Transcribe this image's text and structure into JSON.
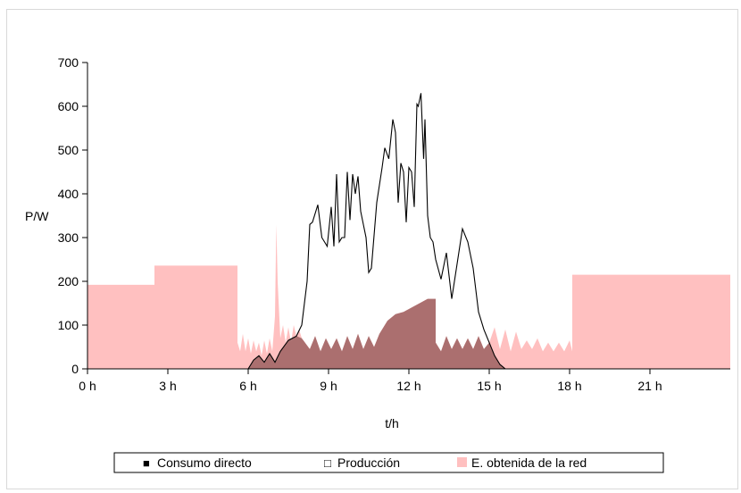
{
  "chart_data": {
    "type": "area",
    "title": "",
    "xlabel": "t/h",
    "ylabel": "P/W",
    "xlim": [
      0,
      24
    ],
    "ylim": [
      0,
      700
    ],
    "x_ticks": [
      0,
      3,
      6,
      9,
      12,
      15,
      18,
      21
    ],
    "x_tick_labels": [
      "0 h",
      "3 h",
      "6 h",
      "9 h",
      "12 h",
      "15 h",
      "18 h",
      "21 h"
    ],
    "y_ticks": [
      0,
      100,
      200,
      300,
      400,
      500,
      600,
      700
    ],
    "y_tick_labels": [
      "0",
      "100",
      "200",
      "300",
      "400",
      "500",
      "600",
      "700"
    ],
    "grid": false,
    "legend_position": "bottom",
    "legend": [
      {
        "label": "Consumo directo",
        "marker": "■"
      },
      {
        "label": "Producción",
        "marker": "□"
      },
      {
        "label": "E. obtenida de la red",
        "marker": ""
      }
    ],
    "colors": {
      "red": "#ffc0c0",
      "consumo": "#a46868",
      "produccion_line": "#000000"
    },
    "series": [
      {
        "name": "E. obtenida de la red",
        "x": [
          0,
          2.5,
          2.5,
          5.6,
          5.6,
          5.7,
          5.8,
          5.9,
          6.0,
          6.1,
          6.2,
          6.3,
          6.4,
          6.5,
          6.6,
          6.7,
          6.8,
          6.9,
          7.0,
          7.05,
          7.1,
          7.2,
          7.3,
          7.4,
          7.5,
          7.6,
          7.7,
          7.8,
          7.9,
          8.0,
          8.3,
          8.5,
          8.7,
          8.9,
          9.1,
          9.3,
          9.5,
          9.7,
          9.9,
          10.1,
          10.3,
          10.5,
          10.7,
          10.9,
          11.0,
          11.2,
          11.5,
          11.8,
          12.1,
          12.4,
          12.7,
          13.0,
          13.0,
          13.2,
          13.4,
          13.6,
          13.8,
          14.0,
          14.2,
          14.4,
          14.6,
          14.8,
          15.0,
          15.2,
          15.4,
          15.6,
          15.8,
          16.0,
          16.2,
          16.4,
          16.6,
          16.8,
          17.0,
          17.2,
          17.4,
          17.6,
          17.8,
          18.0,
          18.1,
          18.1,
          24
        ],
        "values": [
          192,
          192,
          236,
          236,
          60,
          40,
          80,
          40,
          70,
          35,
          65,
          40,
          60,
          30,
          65,
          35,
          70,
          40,
          120,
          330,
          200,
          70,
          100,
          60,
          95,
          60,
          100,
          75,
          90,
          70,
          45,
          75,
          40,
          70,
          45,
          70,
          40,
          75,
          45,
          80,
          45,
          75,
          50,
          80,
          90,
          110,
          125,
          130,
          140,
          150,
          160,
          160,
          60,
          40,
          75,
          45,
          70,
          45,
          70,
          45,
          75,
          45,
          60,
          95,
          45,
          90,
          40,
          85,
          45,
          65,
          45,
          70,
          40,
          60,
          40,
          60,
          40,
          65,
          40,
          215,
          215
        ]
      },
      {
        "name": "Producción",
        "x": [
          6.0,
          6.2,
          6.4,
          6.6,
          6.8,
          7.0,
          7.2,
          7.5,
          7.8,
          8.0,
          8.2,
          8.3,
          8.4,
          8.6,
          8.75,
          8.85,
          8.95,
          9.1,
          9.2,
          9.3,
          9.4,
          9.5,
          9.6,
          9.7,
          9.8,
          9.9,
          10.0,
          10.1,
          10.2,
          10.3,
          10.4,
          10.5,
          10.6,
          10.8,
          11.0,
          11.1,
          11.25,
          11.4,
          11.5,
          11.6,
          11.7,
          11.8,
          11.9,
          12.0,
          12.1,
          12.2,
          12.3,
          12.35,
          12.45,
          12.55,
          12.6,
          12.7,
          12.8,
          12.9,
          13.0,
          13.2,
          13.4,
          13.6,
          13.8,
          14.0,
          14.2,
          14.4,
          14.6,
          14.8,
          15.0,
          15.2,
          15.4,
          15.6,
          16.0
        ],
        "values": [
          0,
          20,
          30,
          15,
          35,
          15,
          40,
          65,
          75,
          100,
          200,
          330,
          335,
          375,
          300,
          290,
          280,
          370,
          280,
          445,
          290,
          300,
          300,
          450,
          340,
          445,
          400,
          440,
          360,
          330,
          300,
          220,
          230,
          380,
          460,
          505,
          480,
          570,
          540,
          380,
          470,
          450,
          335,
          460,
          450,
          370,
          605,
          600,
          630,
          480,
          570,
          350,
          300,
          290,
          250,
          205,
          265,
          160,
          240,
          320,
          290,
          230,
          130,
          90,
          60,
          30,
          10,
          0,
          0
        ]
      },
      {
        "name": "Consumo directo",
        "x": [
          6.0,
          6.2,
          6.4,
          6.6,
          6.8,
          7.0,
          7.2,
          7.5,
          7.8,
          8.0,
          8.3,
          8.5,
          8.7,
          8.9,
          9.1,
          9.3,
          9.5,
          9.7,
          9.9,
          10.1,
          10.3,
          10.5,
          10.7,
          10.9,
          11.0,
          11.2,
          11.5,
          11.8,
          12.1,
          12.4,
          12.7,
          13.0,
          13.0,
          13.2,
          13.4,
          13.6,
          13.8,
          14.0,
          14.2,
          14.4,
          14.6,
          14.8,
          15.0,
          15.2,
          15.4,
          15.6,
          16.0
        ],
        "values": [
          0,
          20,
          30,
          15,
          35,
          15,
          40,
          65,
          75,
          70,
          45,
          75,
          40,
          70,
          45,
          70,
          40,
          75,
          45,
          80,
          45,
          75,
          50,
          80,
          90,
          110,
          125,
          130,
          140,
          150,
          160,
          160,
          60,
          40,
          75,
          45,
          70,
          45,
          70,
          45,
          75,
          45,
          60,
          30,
          10,
          0,
          0
        ]
      }
    ]
  }
}
